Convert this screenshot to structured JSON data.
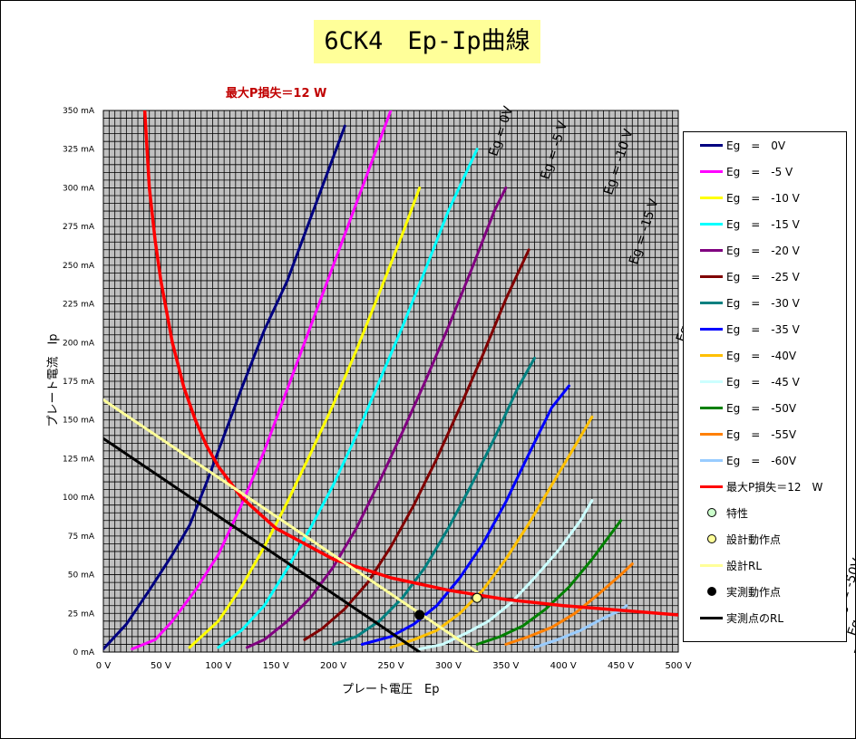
{
  "chart_data": {
    "type": "line",
    "title": "6CK4　Ep-Ip曲線",
    "xlabel": "プレート電圧　Ep",
    "ylabel": "プレート電流　Ip",
    "xlim": [
      0,
      500
    ],
    "ylim": [
      0,
      350
    ],
    "x_ticks": [
      "0 V",
      "50 V",
      "100 V",
      "150 V",
      "200 V",
      "250 V",
      "300 V",
      "350 V",
      "400 V",
      "450 V",
      "500 V"
    ],
    "y_ticks": [
      "0 mA",
      "25 mA",
      "50 mA",
      "75 mA",
      "100 mA",
      "125 mA",
      "150 mA",
      "175 mA",
      "200 mA",
      "225 mA",
      "250 mA",
      "275 mA",
      "300 mA",
      "325 mA",
      "350 mA"
    ],
    "grid": true,
    "plot_background": "#c0c0c0",
    "legend_position": "right",
    "series": [
      {
        "name": "Eg = 0V",
        "color": "#000080",
        "label": "Eg = 0V",
        "label_at": [
          350,
          320
        ],
        "points": [
          [
            0,
            2
          ],
          [
            20,
            18
          ],
          [
            40,
            40
          ],
          [
            60,
            63
          ],
          [
            75,
            82
          ],
          [
            90,
            110
          ],
          [
            100,
            130
          ],
          [
            120,
            170
          ],
          [
            140,
            208
          ],
          [
            160,
            240
          ],
          [
            180,
            280
          ],
          [
            200,
            320
          ],
          [
            210,
            340
          ]
        ]
      },
      {
        "name": "Eg = -5 V",
        "color": "#ff00ff",
        "label": "Eg = -5 V",
        "label_at": [
          395,
          305
        ],
        "points": [
          [
            25,
            2
          ],
          [
            45,
            8
          ],
          [
            60,
            20
          ],
          [
            80,
            40
          ],
          [
            100,
            63
          ],
          [
            120,
            95
          ],
          [
            140,
            130
          ],
          [
            160,
            170
          ],
          [
            180,
            210
          ],
          [
            200,
            250
          ],
          [
            220,
            290
          ],
          [
            240,
            330
          ],
          [
            250,
            350
          ]
        ]
      },
      {
        "name": "Eg = -10 V",
        "color": "#ffff00",
        "label": "Eg = -10 V",
        "label_at": [
          450,
          295
        ],
        "points": [
          [
            75,
            3
          ],
          [
            100,
            20
          ],
          [
            120,
            42
          ],
          [
            140,
            68
          ],
          [
            160,
            97
          ],
          [
            180,
            128
          ],
          [
            200,
            160
          ],
          [
            220,
            195
          ],
          [
            240,
            232
          ],
          [
            260,
            270
          ],
          [
            275,
            300
          ]
        ]
      },
      {
        "name": "Eg = -15 V",
        "color": "#00ffff",
        "label": "Eg = -15 V",
        "label_at": [
          472,
          250
        ],
        "points": [
          [
            100,
            3
          ],
          [
            120,
            14
          ],
          [
            140,
            30
          ],
          [
            160,
            54
          ],
          [
            180,
            80
          ],
          [
            200,
            108
          ],
          [
            220,
            140
          ],
          [
            240,
            175
          ],
          [
            260,
            210
          ],
          [
            280,
            247
          ],
          [
            300,
            285
          ],
          [
            325,
            325
          ]
        ]
      },
      {
        "name": "Eg = -20 V",
        "color": "#800080",
        "label": "Eg = -20 V",
        "label_at": [
          513,
          200
        ],
        "points": [
          [
            125,
            3
          ],
          [
            140,
            8
          ],
          [
            160,
            20
          ],
          [
            180,
            35
          ],
          [
            200,
            55
          ],
          [
            220,
            80
          ],
          [
            240,
            110
          ],
          [
            260,
            142
          ],
          [
            280,
            175
          ],
          [
            300,
            210
          ],
          [
            320,
            247
          ],
          [
            340,
            285
          ],
          [
            350,
            300
          ]
        ]
      },
      {
        "name": "Eg = -25 V",
        "color": "#800000",
        "label": "Eg = -25 V",
        "label_at": [
          557,
          155
        ],
        "points": [
          [
            175,
            8
          ],
          [
            190,
            15
          ],
          [
            210,
            28
          ],
          [
            230,
            45
          ],
          [
            250,
            68
          ],
          [
            270,
            95
          ],
          [
            290,
            125
          ],
          [
            310,
            158
          ],
          [
            330,
            192
          ],
          [
            350,
            228
          ],
          [
            370,
            260
          ]
        ]
      },
      {
        "name": "Eg = -30 V",
        "color": "#008080",
        "label": "Eg = -30 V",
        "label_at": [
          576,
          115
        ],
        "points": [
          [
            200,
            5
          ],
          [
            220,
            10
          ],
          [
            240,
            20
          ],
          [
            260,
            35
          ],
          [
            280,
            55
          ],
          [
            300,
            80
          ],
          [
            320,
            108
          ],
          [
            340,
            138
          ],
          [
            360,
            170
          ],
          [
            375,
            190
          ]
        ]
      },
      {
        "name": "Eg = -35 V",
        "color": "#0000ff",
        "label": "Eg = -35 V",
        "label_at": [
          600,
          80
        ],
        "points": [
          [
            225,
            5
          ],
          [
            250,
            10
          ],
          [
            270,
            18
          ],
          [
            290,
            30
          ],
          [
            310,
            48
          ],
          [
            330,
            70
          ],
          [
            350,
            97
          ],
          [
            370,
            128
          ],
          [
            390,
            158
          ],
          [
            405,
            172
          ]
        ]
      },
      {
        "name": "Eg = -40V",
        "color": "#ffc000",
        "label": "Eg = -40V",
        "label_at": [
          627,
          65
        ],
        "points": [
          [
            250,
            3
          ],
          [
            270,
            8
          ],
          [
            290,
            14
          ],
          [
            310,
            25
          ],
          [
            330,
            40
          ],
          [
            350,
            60
          ],
          [
            370,
            83
          ],
          [
            390,
            108
          ],
          [
            410,
            133
          ],
          [
            425,
            152
          ]
        ]
      },
      {
        "name": "Eg = -45 V",
        "color": "#ccffff",
        "label": "Eg = -45 V",
        "label_at": [
          632,
          40
        ],
        "points": [
          [
            275,
            2
          ],
          [
            295,
            5
          ],
          [
            315,
            12
          ],
          [
            335,
            20
          ],
          [
            355,
            32
          ],
          [
            375,
            48
          ],
          [
            395,
            65
          ],
          [
            415,
            85
          ],
          [
            425,
            98
          ]
        ]
      },
      {
        "name": "Eg = -50V",
        "color": "#008000",
        "label": "Eg = -50V",
        "label_at": [
          650,
          20
        ],
        "points": [
          [
            325,
            5
          ],
          [
            345,
            10
          ],
          [
            365,
            17
          ],
          [
            385,
            28
          ],
          [
            405,
            42
          ],
          [
            425,
            60
          ],
          [
            445,
            80
          ],
          [
            450,
            85
          ]
        ]
      },
      {
        "name": "Eg = -55V",
        "color": "#ff8000",
        "label": "Eg = -55V",
        "label_at": [
          662,
          10
        ],
        "points": [
          [
            350,
            5
          ],
          [
            370,
            10
          ],
          [
            390,
            16
          ],
          [
            410,
            25
          ],
          [
            430,
            37
          ],
          [
            450,
            50
          ],
          [
            460,
            57
          ]
        ]
      },
      {
        "name": "Eg = -60V",
        "color": "#99ccff",
        "label": "Eg = -60V",
        "label_at": [
          668,
          -3
        ],
        "points": [
          [
            375,
            3
          ],
          [
            395,
            8
          ],
          [
            415,
            14
          ],
          [
            435,
            22
          ],
          [
            450,
            27
          ],
          [
            455,
            30
          ]
        ]
      },
      {
        "name": "最大P損失＝12 W",
        "color": "#ff0000",
        "label": "最大P損失＝12 W",
        "label_at": [
          160,
          360
        ],
        "width": 3.5,
        "points": [
          [
            36,
            350
          ],
          [
            40,
            300
          ],
          [
            45,
            266
          ],
          [
            50,
            240
          ],
          [
            60,
            200
          ],
          [
            70,
            171
          ],
          [
            80,
            150
          ],
          [
            90,
            133
          ],
          [
            100,
            120
          ],
          [
            120,
            100
          ],
          [
            150,
            80
          ],
          [
            200,
            60
          ],
          [
            250,
            48
          ],
          [
            300,
            40
          ],
          [
            350,
            34
          ],
          [
            400,
            30
          ],
          [
            450,
            27
          ],
          [
            500,
            24
          ]
        ]
      },
      {
        "name": "設計RL",
        "color": "#ffff99",
        "width": 3,
        "points": [
          [
            0,
            163
          ],
          [
            325,
            0
          ]
        ]
      },
      {
        "name": "実測点のRL",
        "color": "#000000",
        "width": 3,
        "points": [
          [
            0,
            138
          ],
          [
            275,
            0
          ]
        ]
      }
    ],
    "markers": [
      {
        "name": "設計動作点",
        "x": 325,
        "y": 35,
        "color": "#ffff99"
      },
      {
        "name": "実測動作点",
        "x": 275,
        "y": 24,
        "color": "#000000"
      }
    ],
    "legend": [
      {
        "label": "Eg　=　0V",
        "color": "#000080",
        "kind": "line"
      },
      {
        "label": "Eg　=　-5 V",
        "color": "#ff00ff",
        "kind": "line"
      },
      {
        "label": "Eg　=　-10 V",
        "color": "#ffff00",
        "kind": "line"
      },
      {
        "label": "Eg　=　-15 V",
        "color": "#00ffff",
        "kind": "line"
      },
      {
        "label": "Eg　=　-20 V",
        "color": "#800080",
        "kind": "line"
      },
      {
        "label": "Eg　=　-25 V",
        "color": "#800000",
        "kind": "line"
      },
      {
        "label": "Eg　=　-30 V",
        "color": "#008080",
        "kind": "line"
      },
      {
        "label": "Eg　=　-35 V",
        "color": "#0000ff",
        "kind": "line"
      },
      {
        "label": "Eg　=　-40V",
        "color": "#ffc000",
        "kind": "line"
      },
      {
        "label": "Eg　=　-45 V",
        "color": "#ccffff",
        "kind": "line"
      },
      {
        "label": "Eg　=　-50V",
        "color": "#008000",
        "kind": "line"
      },
      {
        "label": "Eg　=　-55V",
        "color": "#ff8000",
        "kind": "line"
      },
      {
        "label": "Eg　=　-60V",
        "color": "#99ccff",
        "kind": "line"
      },
      {
        "label": "最大P損失＝12　W",
        "color": "#ff0000",
        "kind": "line"
      },
      {
        "label": "特性",
        "color": "#ccffcc",
        "kind": "dot"
      },
      {
        "label": "設計動作点",
        "color": "#ffff99",
        "kind": "dot"
      },
      {
        "label": "設計RL",
        "color": "#ffff99",
        "kind": "line"
      },
      {
        "label": "実測動作点",
        "color": "#000000",
        "kind": "dot"
      },
      {
        "label": "実測点のRL",
        "color": "#000000",
        "kind": "line"
      }
    ]
  }
}
